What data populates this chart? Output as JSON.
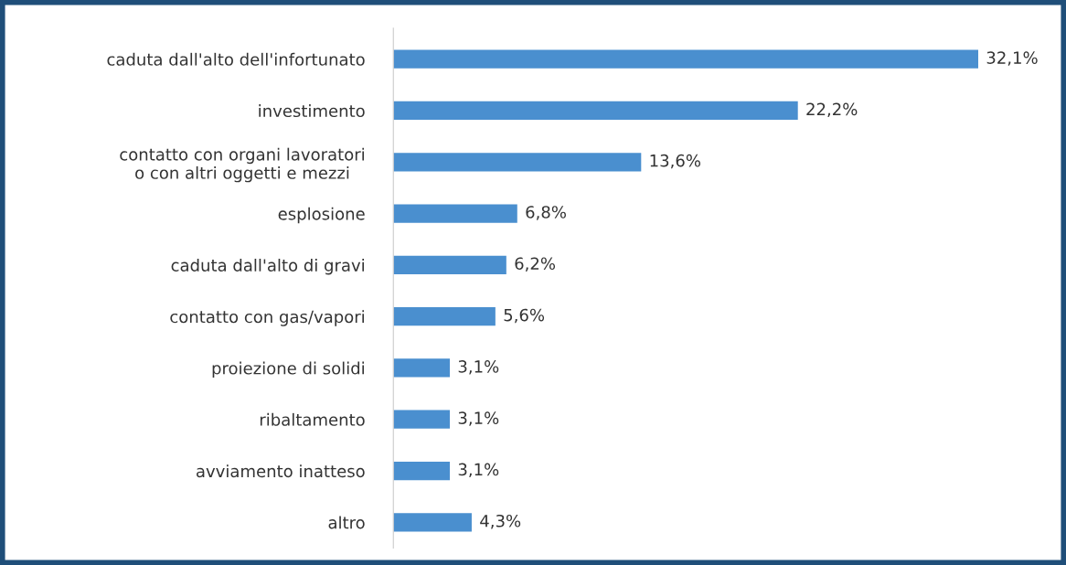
{
  "chart_data": {
    "type": "bar",
    "orientation": "horizontal",
    "categories": [
      "caduta dall'alto dell'infortunato",
      "investimento",
      "contatto con organi lavoratori\no con altri oggetti e mezzi",
      "esplosione",
      "caduta dall'alto di gravi",
      "contatto con gas/vapori",
      "proiezione di solidi",
      "ribaltamento",
      "avviamento inatteso",
      "altro"
    ],
    "values": [
      32.1,
      22.2,
      13.6,
      6.8,
      6.2,
      5.6,
      3.1,
      3.1,
      3.1,
      4.3
    ],
    "value_labels": [
      "32,1%",
      "22,2%",
      "13,6%",
      "6,8%",
      "6,2%",
      "5,6%",
      "3,1%",
      "3,1%",
      "3,1%",
      "4,3%"
    ],
    "color": "#4a8fcf",
    "grid": false,
    "legend": false
  }
}
